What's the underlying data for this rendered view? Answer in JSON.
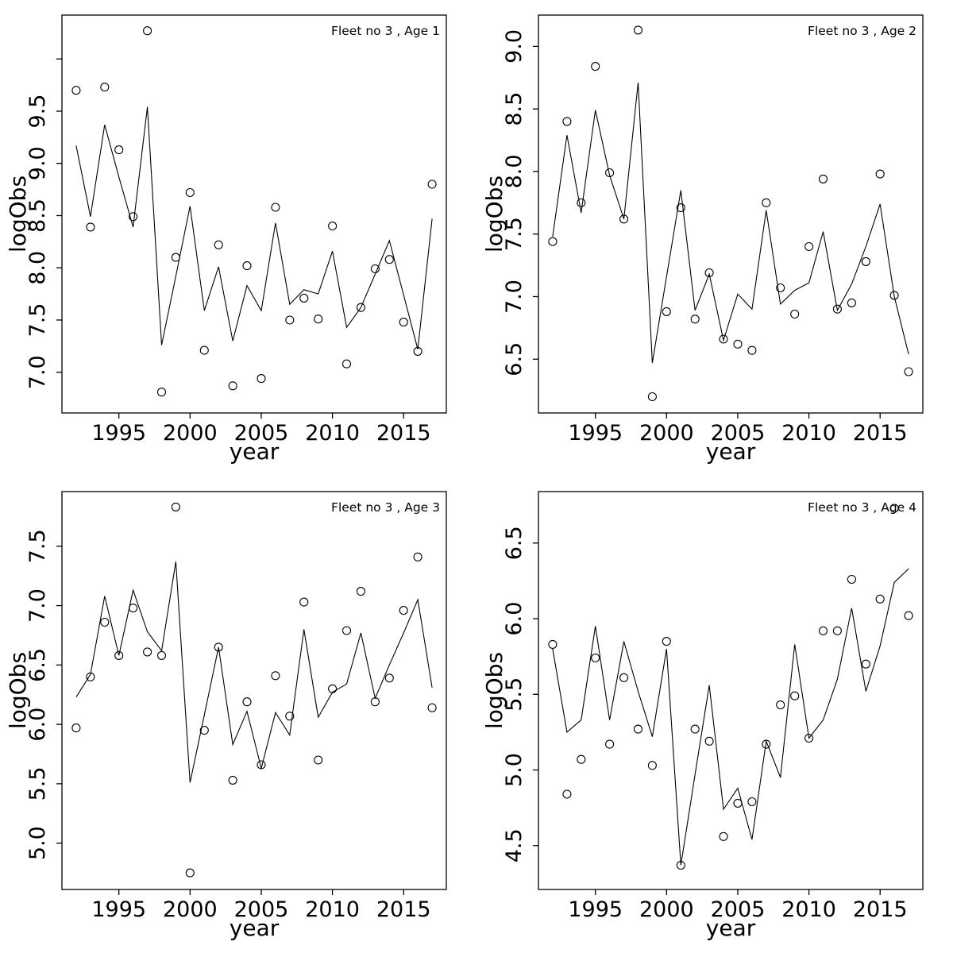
{
  "page": {
    "background": "#ffffff",
    "ink_color": "#000000"
  },
  "chart_data": [
    {
      "type": "line",
      "subtype": "line+scatter",
      "title": "Fleet no 3 , Age 1",
      "xlabel": "year",
      "ylabel": "logObs",
      "grid": false,
      "legend": "none",
      "xlim": [
        1991,
        2018
      ],
      "ylim": [
        6.61,
        10.42
      ],
      "xticks": {
        "values": [
          1995,
          2000,
          2005,
          2010,
          2015
        ],
        "labels": [
          "1995",
          "2000",
          "2005",
          "2010",
          "2015"
        ]
      },
      "yticks": {
        "values": [
          7.0,
          7.5,
          8.0,
          8.5,
          9.0,
          9.5,
          10.0
        ],
        "labels": [
          "7.0",
          "7.5",
          "8.0",
          "8.5",
          "9.0",
          "9.5",
          ""
        ]
      },
      "x": [
        1992,
        1993,
        1994,
        1995,
        1996,
        1997,
        1998,
        1999,
        2000,
        2001,
        2002,
        2003,
        2004,
        2005,
        2006,
        2007,
        2008,
        2009,
        2010,
        2011,
        2012,
        2013,
        2014,
        2015,
        2016,
        2017
      ],
      "series": [
        {
          "name": "observed",
          "style": "points",
          "marker": "open-circle",
          "values": [
            9.7,
            8.39,
            9.73,
            9.13,
            8.49,
            10.27,
            6.81,
            8.1,
            8.72,
            7.21,
            8.22,
            6.87,
            8.02,
            6.94,
            8.58,
            7.5,
            7.71,
            7.51,
            8.4,
            7.08,
            7.62,
            7.99,
            8.08,
            7.48,
            7.2,
            8.8
          ]
        },
        {
          "name": "fitted",
          "style": "line",
          "marker": "none",
          "values": [
            9.17,
            8.49,
            9.37,
            8.87,
            8.39,
            9.54,
            7.26,
            7.92,
            8.59,
            7.59,
            8.01,
            7.3,
            7.83,
            7.59,
            8.43,
            7.65,
            7.79,
            7.75,
            8.16,
            7.43,
            7.62,
            7.94,
            8.26,
            7.74,
            7.22,
            8.47
          ]
        }
      ]
    },
    {
      "type": "line",
      "subtype": "line+scatter",
      "title": "Fleet no 3 , Age 2",
      "xlabel": "year",
      "ylabel": "logObs",
      "grid": false,
      "legend": "none",
      "xlim": [
        1991,
        2018
      ],
      "ylim": [
        6.07,
        9.25
      ],
      "xticks": {
        "values": [
          1995,
          2000,
          2005,
          2010,
          2015
        ],
        "labels": [
          "1995",
          "2000",
          "2005",
          "2010",
          "2015"
        ]
      },
      "yticks": {
        "values": [
          6.5,
          7.0,
          7.5,
          8.0,
          8.5,
          9.0
        ],
        "labels": [
          "6.5",
          "7.0",
          "7.5",
          "8.0",
          "8.5",
          "9.0"
        ]
      },
      "x": [
        1992,
        1993,
        1994,
        1995,
        1996,
        1997,
        1998,
        1999,
        2000,
        2001,
        2002,
        2003,
        2004,
        2005,
        2006,
        2007,
        2008,
        2009,
        2010,
        2011,
        2012,
        2013,
        2014,
        2015,
        2016,
        2017
      ],
      "series": [
        {
          "name": "observed",
          "style": "points",
          "marker": "open-circle",
          "values": [
            7.44,
            8.4,
            7.75,
            8.84,
            7.99,
            7.62,
            9.13,
            6.2,
            6.88,
            7.71,
            6.82,
            7.19,
            6.66,
            6.62,
            6.57,
            7.75,
            7.07,
            6.86,
            7.4,
            7.94,
            6.9,
            6.95,
            7.28,
            7.98,
            7.01,
            6.4
          ]
        },
        {
          "name": "fitted",
          "style": "line",
          "marker": "none",
          "values": [
            7.48,
            8.29,
            7.67,
            8.49,
            7.97,
            7.62,
            8.71,
            6.47,
            7.16,
            7.85,
            6.89,
            7.18,
            6.65,
            7.02,
            6.9,
            7.69,
            6.94,
            7.05,
            7.11,
            7.52,
            6.89,
            7.1,
            7.4,
            7.74,
            7.0,
            6.54
          ]
        }
      ]
    },
    {
      "type": "line",
      "subtype": "line+scatter",
      "title": "Fleet no 3 , Age 3",
      "xlabel": "year",
      "ylabel": "logObs",
      "grid": false,
      "legend": "none",
      "xlim": [
        1991,
        2018
      ],
      "ylim": [
        4.61,
        7.96
      ],
      "xticks": {
        "values": [
          1995,
          2000,
          2005,
          2010,
          2015
        ],
        "labels": [
          "1995",
          "2000",
          "2005",
          "2010",
          "2015"
        ]
      },
      "yticks": {
        "values": [
          5.0,
          5.5,
          6.0,
          6.5,
          7.0,
          7.5
        ],
        "labels": [
          "5.0",
          "5.5",
          "6.0",
          "6.5",
          "7.0",
          "7.5"
        ]
      },
      "x": [
        1992,
        1993,
        1994,
        1995,
        1996,
        1997,
        1998,
        1999,
        2000,
        2001,
        2002,
        2003,
        2004,
        2005,
        2006,
        2007,
        2008,
        2009,
        2010,
        2011,
        2012,
        2013,
        2014,
        2015,
        2016,
        2017
      ],
      "series": [
        {
          "name": "observed",
          "style": "points",
          "marker": "open-circle",
          "values": [
            5.97,
            6.4,
            6.86,
            6.58,
            6.98,
            6.61,
            6.58,
            7.83,
            4.75,
            5.95,
            6.65,
            5.53,
            6.19,
            5.66,
            6.41,
            6.07,
            7.03,
            5.7,
            6.3,
            6.79,
            7.12,
            6.19,
            6.39,
            6.96,
            7.41,
            6.14
          ]
        },
        {
          "name": "fitted",
          "style": "line",
          "marker": "none",
          "values": [
            6.23,
            6.42,
            7.08,
            6.58,
            7.13,
            6.78,
            6.62,
            7.37,
            5.51,
            6.08,
            6.65,
            5.83,
            6.11,
            5.63,
            6.1,
            5.91,
            6.8,
            6.06,
            6.27,
            6.34,
            6.77,
            6.22,
            6.5,
            6.77,
            7.05,
            6.31
          ]
        }
      ]
    },
    {
      "type": "line",
      "subtype": "line+scatter",
      "title": "Fleet no 3 , Age 4",
      "xlabel": "year",
      "ylabel": "logObs",
      "grid": false,
      "legend": "none",
      "xlim": [
        1991,
        2018
      ],
      "ylim": [
        4.21,
        6.84
      ],
      "xticks": {
        "values": [
          1995,
          2000,
          2005,
          2010,
          2015
        ],
        "labels": [
          "1995",
          "2000",
          "2005",
          "2010",
          "2015"
        ]
      },
      "yticks": {
        "values": [
          4.5,
          5.0,
          5.5,
          6.0,
          6.5
        ],
        "labels": [
          "4.5",
          "5.0",
          "5.5",
          "6.0",
          "6.5"
        ]
      },
      "x": [
        1992,
        1993,
        1994,
        1995,
        1996,
        1997,
        1998,
        1999,
        2000,
        2001,
        2002,
        2003,
        2004,
        2005,
        2006,
        2007,
        2008,
        2009,
        2010,
        2011,
        2012,
        2013,
        2014,
        2015,
        2016,
        2017
      ],
      "series": [
        {
          "name": "observed",
          "style": "points",
          "marker": "open-circle",
          "values": [
            5.83,
            4.84,
            5.07,
            5.74,
            5.17,
            5.61,
            5.27,
            5.03,
            5.85,
            4.37,
            5.27,
            5.19,
            4.56,
            4.78,
            4.79,
            5.17,
            5.43,
            5.49,
            5.21,
            5.92,
            5.92,
            6.26,
            5.7,
            6.13,
            6.73,
            6.02
          ]
        },
        {
          "name": "fitted",
          "style": "line",
          "marker": "none",
          "values": [
            5.8,
            5.25,
            5.33,
            5.95,
            5.33,
            5.85,
            5.52,
            5.22,
            5.8,
            4.37,
            4.97,
            5.56,
            4.74,
            4.88,
            4.54,
            5.19,
            4.95,
            5.83,
            5.21,
            5.33,
            5.6,
            6.07,
            5.52,
            5.82,
            6.24,
            6.33
          ]
        }
      ]
    }
  ]
}
